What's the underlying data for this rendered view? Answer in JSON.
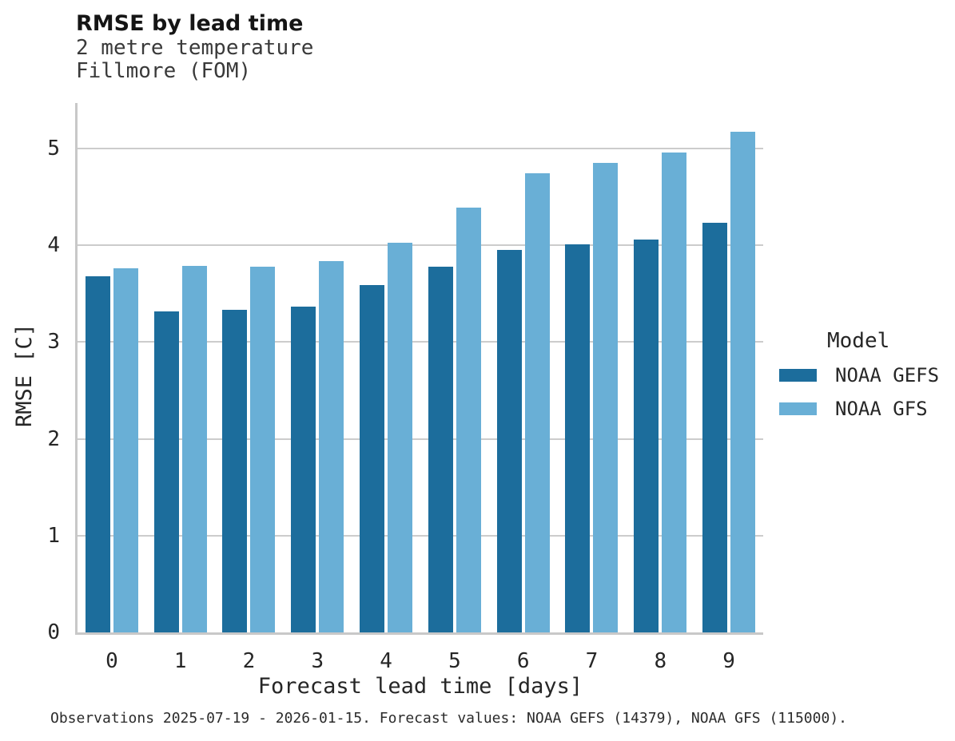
{
  "chart_data": {
    "type": "bar",
    "title": "RMSE by lead time",
    "subtitle": [
      "2 metre temperature",
      "Fillmore (FOM)"
    ],
    "xlabel": "Forecast lead time [days]",
    "ylabel": "RMSE [C]",
    "categories": [
      "0",
      "1",
      "2",
      "3",
      "4",
      "5",
      "6",
      "7",
      "8",
      "9"
    ],
    "series": [
      {
        "name": "NOAA GEFS",
        "color": "#1c6d9c",
        "values": [
          3.68,
          3.32,
          3.33,
          3.37,
          3.59,
          3.78,
          3.95,
          4.01,
          4.06,
          4.23
        ]
      },
      {
        "name": "NOAA GFS",
        "color": "#69afd6",
        "values": [
          3.76,
          3.79,
          3.78,
          3.84,
          4.03,
          4.39,
          4.74,
          4.85,
          4.96,
          5.17
        ]
      }
    ],
    "yticks": [
      0,
      1,
      2,
      3,
      4,
      5
    ],
    "ylim": [
      0,
      5.47
    ],
    "grid": true,
    "legend": {
      "title": "Model",
      "position": "right"
    }
  },
  "colors": {
    "grid": "#cccccc",
    "spine": "#c8c8c8"
  },
  "caption": "Observations 2025-07-19 - 2026-01-15. Forecast values: NOAA GEFS (14379), NOAA GFS (115000)."
}
